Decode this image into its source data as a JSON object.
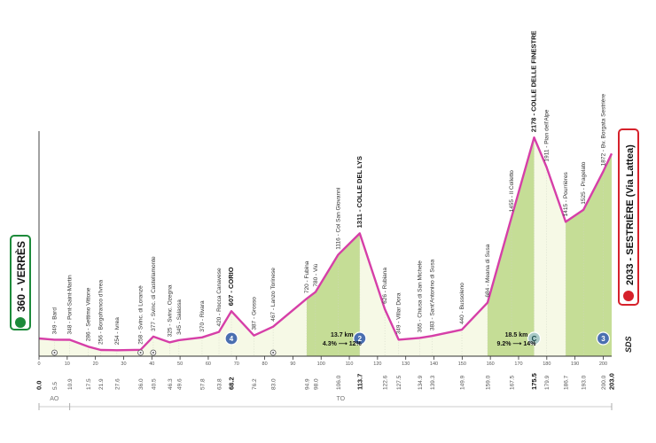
{
  "chart_data": {
    "type": "area",
    "xlim": [
      0,
      203.0
    ],
    "ylim": [
      0,
      2300
    ],
    "series": [
      {
        "points": [
          [
            0.0,
            360
          ],
          [
            5.5,
            349
          ],
          [
            10.9,
            348
          ],
          [
            17.5,
            286
          ],
          [
            21.9,
            256
          ],
          [
            27.6,
            254
          ],
          [
            36.0,
            258
          ],
          [
            40.5,
            377
          ],
          [
            46.3,
            325
          ],
          [
            49.6,
            345
          ],
          [
            57.8,
            370
          ],
          [
            63.8,
            420
          ],
          [
            68.2,
            607
          ],
          [
            76.2,
            387
          ],
          [
            83.0,
            467
          ],
          [
            94.9,
            720
          ],
          [
            98.0,
            780
          ],
          [
            106.0,
            1116
          ],
          [
            113.7,
            1311
          ],
          [
            122.6,
            626
          ],
          [
            127.5,
            349
          ],
          [
            134.9,
            365
          ],
          [
            139.3,
            383
          ],
          [
            149.9,
            440
          ],
          [
            159.0,
            684
          ],
          [
            167.5,
            1455
          ],
          [
            175.5,
            2178
          ],
          [
            179.9,
            1911
          ],
          [
            186.7,
            1415
          ],
          [
            193.0,
            1525
          ],
          [
            200.0,
            1872
          ],
          [
            203.0,
            2033
          ]
        ]
      }
    ],
    "start_label": "360 - VERRÈS",
    "finish_label": "2033 - SESTRIÈRE (Via Lattea)",
    "waypoints": [
      {
        "km": 5.5,
        "text": "349 - Bard"
      },
      {
        "km": 10.9,
        "text": "348 - Pont-Saint-Martin"
      },
      {
        "km": 17.5,
        "text": "286 - Settimo Vittone"
      },
      {
        "km": 21.9,
        "text": "256 - Borgofranco d'Ivrea"
      },
      {
        "km": 27.6,
        "text": "254 - Ivrea"
      },
      {
        "km": 36.0,
        "text": "258 - Svinc. di Loranzè"
      },
      {
        "km": 40.5,
        "text": "377 - Svinc. di Castellamonte"
      },
      {
        "km": 46.3,
        "text": "325 - Svinc. Ozegna"
      },
      {
        "km": 49.6,
        "text": "345 - Salassa"
      },
      {
        "km": 57.8,
        "text": "370 - Rivara"
      },
      {
        "km": 63.8,
        "text": "420 - Rocca Canavese"
      },
      {
        "km": 68.2,
        "text": "607 - CORIO",
        "bold": true
      },
      {
        "km": 76.2,
        "text": "387 - Grosso"
      },
      {
        "km": 83.0,
        "text": "467 - Lanzo Torinese"
      },
      {
        "km": 94.9,
        "text": "720 - Fubina"
      },
      {
        "km": 98.0,
        "text": "780 - Viù"
      },
      {
        "km": 106.0,
        "text": "1116 - Col San Giovanni"
      },
      {
        "km": 113.7,
        "text": "1311 - COLLE DEL LYS",
        "bold": true
      },
      {
        "km": 122.6,
        "text": "626 - Rubiana"
      },
      {
        "km": 127.5,
        "text": "349 - Villar Dora"
      },
      {
        "km": 134.9,
        "text": "365 - Chiusa di San Michele"
      },
      {
        "km": 139.3,
        "text": "383 - Sant'Antonino di Susa"
      },
      {
        "km": 149.9,
        "text": "440 - Bussoleno"
      },
      {
        "km": 159.0,
        "text": "684 - Meana di Susa"
      },
      {
        "km": 167.5,
        "text": "1455 - Il Colletto"
      },
      {
        "km": 175.5,
        "text": "2178 - COLLE DELLE FINESTRE",
        "bold": true
      },
      {
        "km": 179.9,
        "text": "1911 - Pian dell'Alpe"
      },
      {
        "km": 186.7,
        "text": "1415 - Pourrières"
      },
      {
        "km": 193.0,
        "text": "1525 - Pragelato"
      },
      {
        "km": 200.0,
        "text": "1872 - Bv. Borgata Sestrière"
      }
    ],
    "km_labels": [
      {
        "km": 0.0,
        "text": "0.0",
        "bold": true
      },
      {
        "km": 5.5,
        "text": "5.5"
      },
      {
        "km": 10.9,
        "text": "10.9"
      },
      {
        "km": 17.5,
        "text": "17.5"
      },
      {
        "km": 21.9,
        "text": "21.9"
      },
      {
        "km": 27.6,
        "text": "27.6"
      },
      {
        "km": 36.0,
        "text": "36.0"
      },
      {
        "km": 40.5,
        "text": "40.5"
      },
      {
        "km": 46.3,
        "text": "46.3"
      },
      {
        "km": 49.6,
        "text": "49.6"
      },
      {
        "km": 57.8,
        "text": "57.8"
      },
      {
        "km": 63.8,
        "text": "63.8"
      },
      {
        "km": 68.2,
        "text": "68.2",
        "bold": true
      },
      {
        "km": 76.2,
        "text": "76.2"
      },
      {
        "km": 83.0,
        "text": "83.0"
      },
      {
        "km": 94.9,
        "text": "94.9"
      },
      {
        "km": 98.0,
        "text": "98.0"
      },
      {
        "km": 106.0,
        "text": "106.0"
      },
      {
        "km": 113.7,
        "text": "113.7",
        "bold": true
      },
      {
        "km": 122.6,
        "text": "122.6"
      },
      {
        "km": 127.5,
        "text": "127.5"
      },
      {
        "km": 134.9,
        "text": "134.9"
      },
      {
        "km": 139.3,
        "text": "139.3"
      },
      {
        "km": 149.9,
        "text": "149.9"
      },
      {
        "km": 159.0,
        "text": "159.0"
      },
      {
        "km": 167.5,
        "text": "167.5"
      },
      {
        "km": 175.5,
        "text": "175.5",
        "bold": true
      },
      {
        "km": 179.9,
        "text": "179.9"
      },
      {
        "km": 186.7,
        "text": "186.7"
      },
      {
        "km": 193.0,
        "text": "193.0"
      },
      {
        "km": 200.0,
        "text": "200.0"
      },
      {
        "km": 203.0,
        "text": "203.0",
        "bold": true
      }
    ],
    "ticks": [
      0,
      10,
      20,
      30,
      40,
      50,
      60,
      70,
      80,
      90,
      100,
      110,
      120,
      130,
      140,
      150,
      160,
      170,
      180,
      190,
      200
    ],
    "altitude_ticks": [
      400,
      600,
      800,
      1000,
      1200,
      1400,
      1600,
      1800
    ],
    "climbs": [
      {
        "from_km": 94.9,
        "to_km": 113.7,
        "category": "2",
        "stats": "13.7 km",
        "grade": "4.3% ⟶ 12%",
        "badge_km": 113.7
      },
      {
        "from_km": 159.0,
        "to_km": 175.5,
        "category": "C",
        "stats": "18.5 km",
        "grade": "9.2% ⟶ 14%",
        "badge_km": 175.5
      },
      {
        "from_km": 186.7,
        "to_km": 203.0,
        "category": "3",
        "badge_km": 200.0
      }
    ],
    "sprints": [
      {
        "km": 68.2,
        "label": "4"
      }
    ],
    "markers": [
      5.5,
      36.0,
      40.5,
      83.0
    ],
    "regions": [
      {
        "text": "AO",
        "from_km": 0.0,
        "to_km": 10.9
      },
      {
        "text": "TO",
        "from_km": 10.9,
        "to_km": 203.0
      }
    ],
    "logo": "SDS",
    "colors": {
      "line": "#d63fa8",
      "fill": "#f6f9e6",
      "climb_fill": "#c5dd96",
      "start": "#1d8a3a",
      "finish": "#d6212b",
      "badge": "#4a6fb0",
      "cima_coppi": "#a9c9c6"
    }
  }
}
